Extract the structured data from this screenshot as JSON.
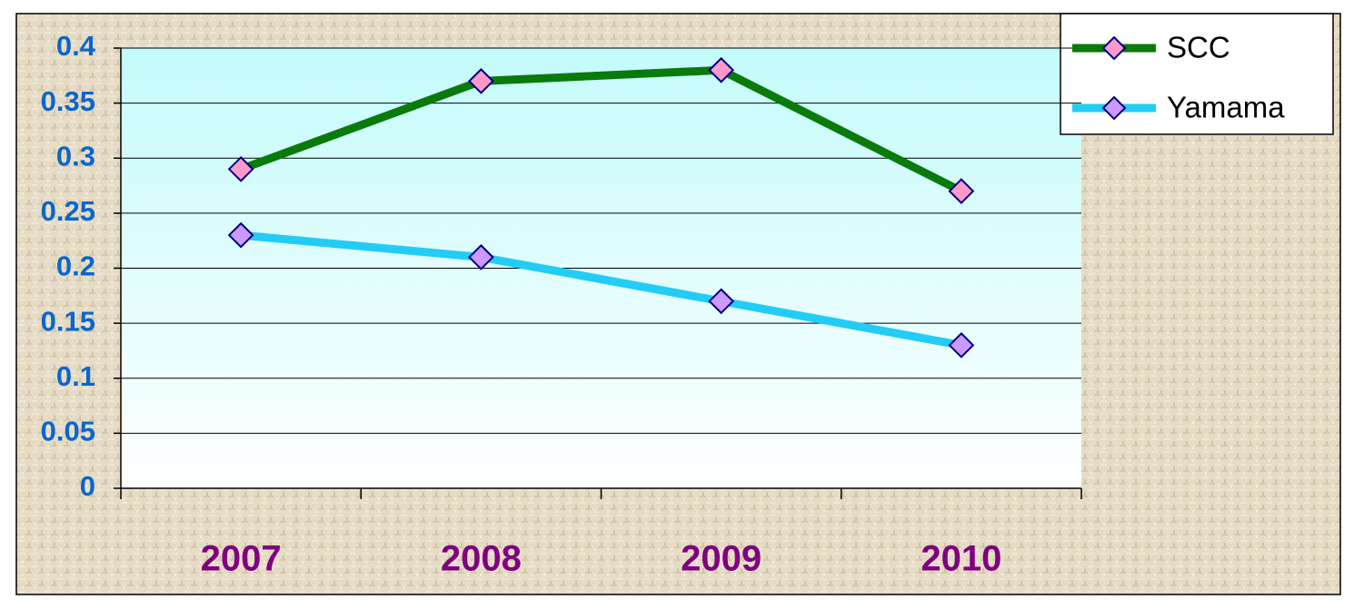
{
  "chart_data": {
    "type": "line",
    "categories": [
      "2007",
      "2008",
      "2009",
      "2010"
    ],
    "series": [
      {
        "name": "SCC",
        "color": "#0a7a0a",
        "marker_color": "#ff99cc",
        "values": [
          0.29,
          0.37,
          0.38,
          0.27
        ]
      },
      {
        "name": "Yamama",
        "color": "#22ccf5",
        "marker_color": "#cc99ff",
        "values": [
          0.23,
          0.21,
          0.17,
          0.13
        ]
      }
    ],
    "ylim": [
      0,
      0.4
    ],
    "yticks": [
      0,
      0.05,
      0.1,
      0.15,
      0.2,
      0.25,
      0.3,
      0.35,
      0.4
    ],
    "grid": true,
    "legend": "top-right"
  }
}
